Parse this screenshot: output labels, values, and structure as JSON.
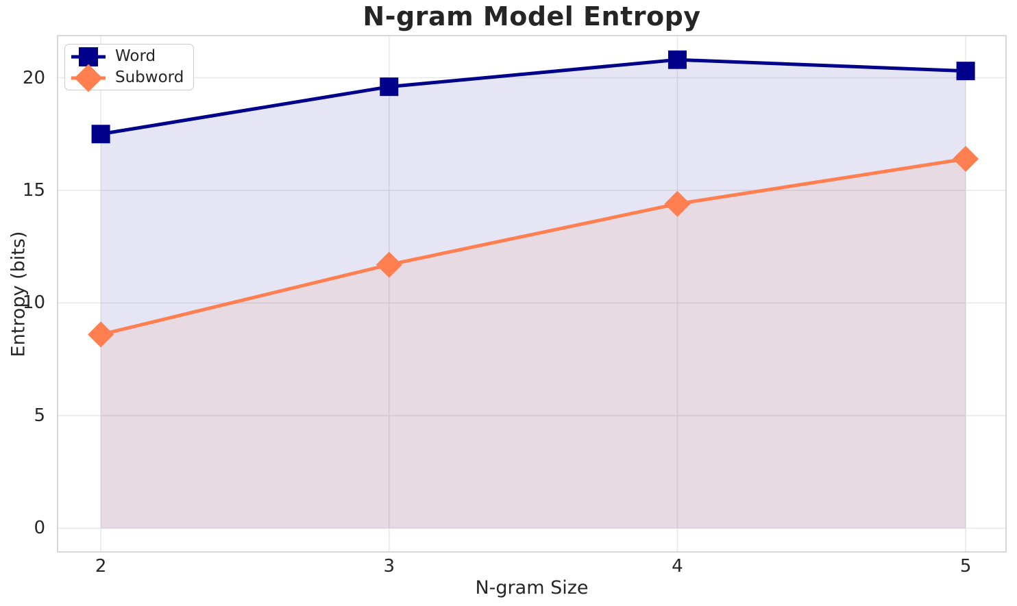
{
  "chart_data": {
    "type": "line",
    "title": "N-gram Model Entropy",
    "xlabel": "N-gram Size",
    "ylabel": "Entropy (bits)",
    "x": [
      2,
      3,
      4,
      5
    ],
    "series": [
      {
        "name": "Word",
        "values": [
          17.5,
          19.6,
          20.8,
          20.3
        ],
        "color": "#00008b",
        "marker": "square",
        "fill_to_zero": true,
        "fill_alpha": 0.1
      },
      {
        "name": "Subword",
        "values": [
          8.6,
          11.7,
          14.4,
          16.4
        ],
        "color": "#ff7f50",
        "marker": "diamond",
        "fill_to_zero": true,
        "fill_alpha": 0.1
      }
    ],
    "xticks": [
      2,
      3,
      4,
      5
    ],
    "yticks": [
      0,
      5,
      10,
      15,
      20
    ],
    "xlim": [
      1.85,
      5.14
    ],
    "ylim": [
      -1.05,
      21.87
    ],
    "grid": true,
    "legend_position": "upper left"
  },
  "colors": {
    "background": "#ffffff",
    "grid": "#e7e7e7",
    "spine": "#cccccc",
    "text": "#262626",
    "word_series": "#00008b",
    "subword_series": "#ff7f50"
  }
}
